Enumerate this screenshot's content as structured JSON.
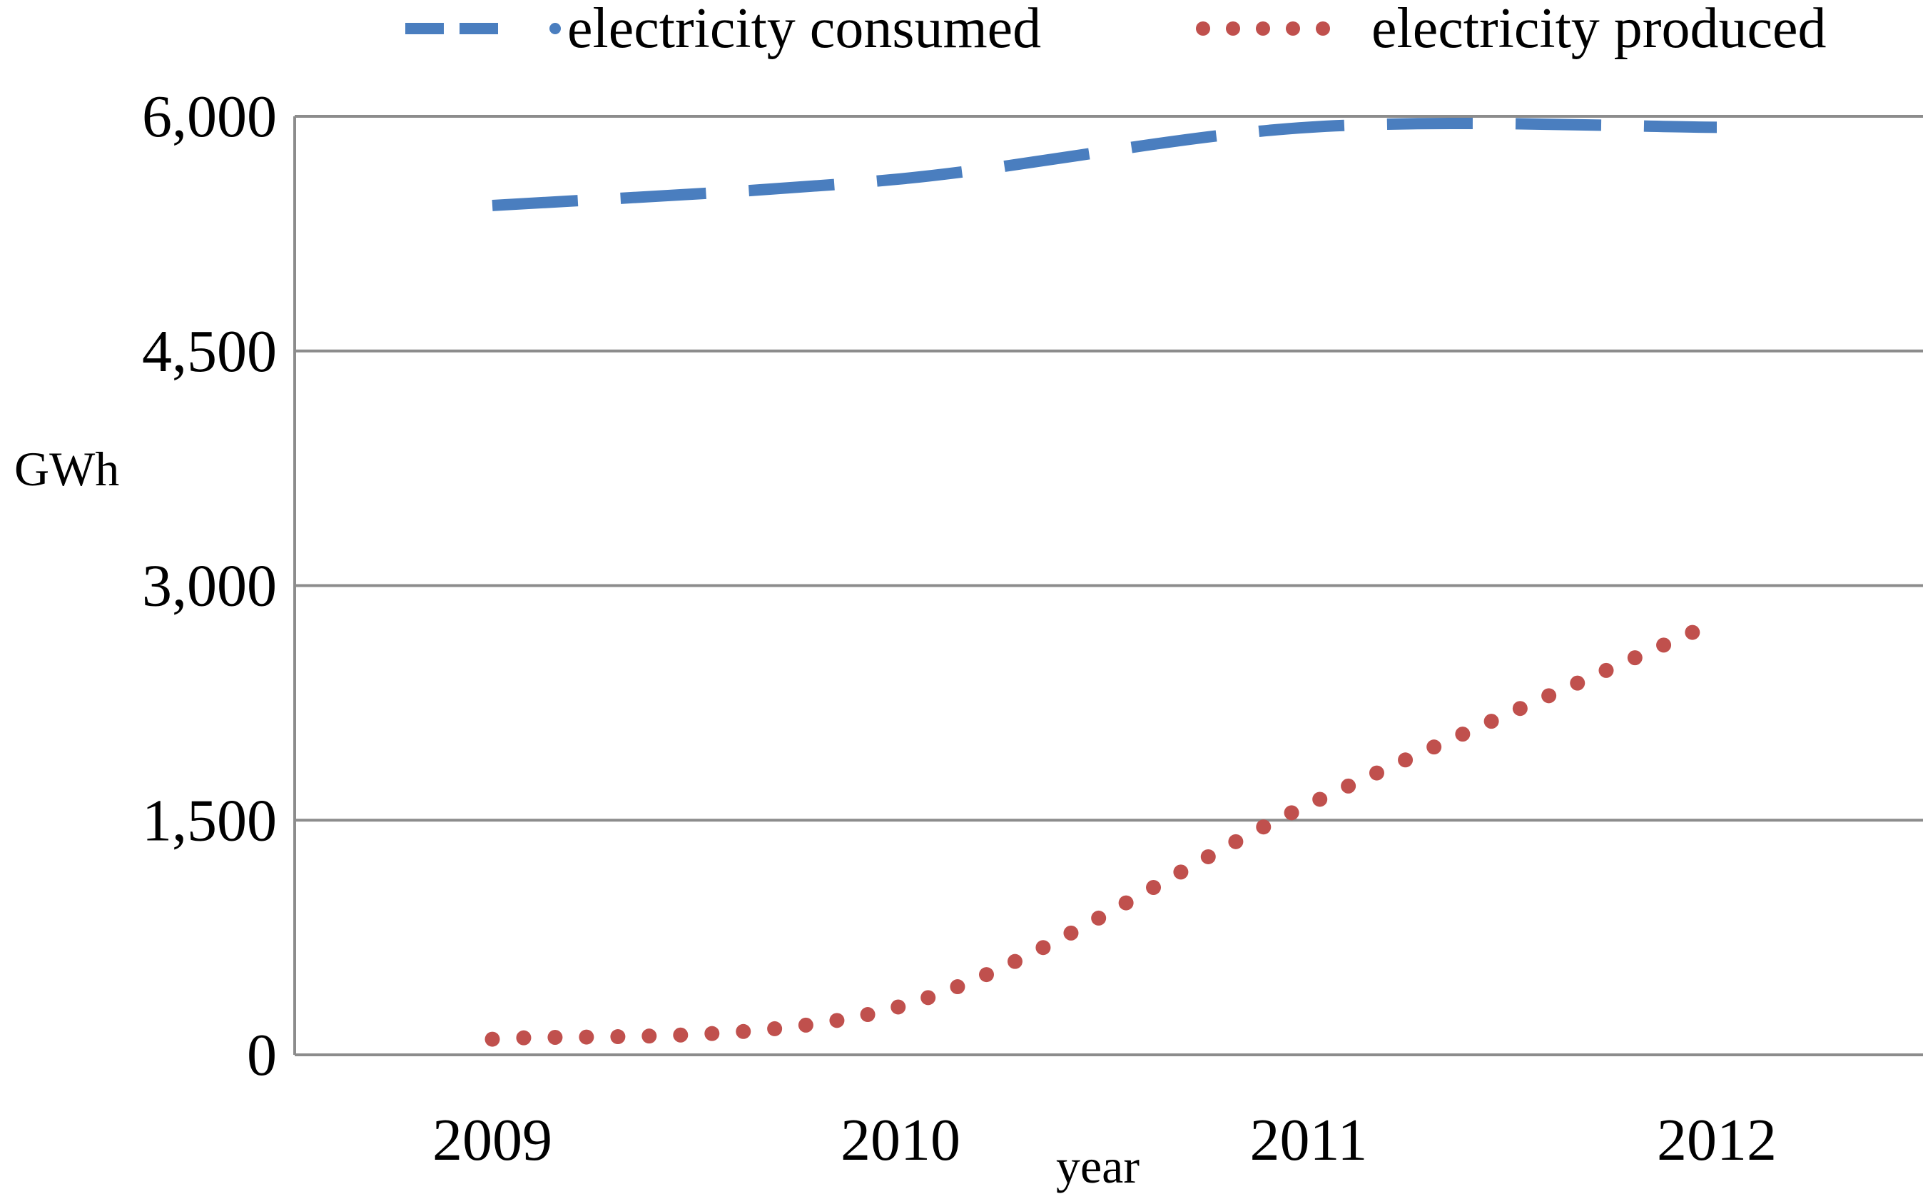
{
  "chart_data": {
    "type": "line",
    "title": "",
    "xlabel": "year",
    "ylabel": "GWh",
    "categories": [
      "2009",
      "2010",
      "2011",
      "2012"
    ],
    "x_ticks": [
      "2009",
      "2010",
      "2011",
      "2012"
    ],
    "ylim": [
      0,
      6000
    ],
    "y_ticks": [
      0,
      1500,
      3000,
      4500,
      6000
    ],
    "y_tick_labels": [
      "0",
      "1,500",
      "3,000",
      "4,500",
      "6,000"
    ],
    "grid": true,
    "legend_position": "top",
    "series": [
      {
        "name": "electricity consumed",
        "style": "dashed",
        "color": "#4a7ebf",
        "points": [
          [
            2009,
            5430
          ],
          [
            2010,
            5600
          ],
          [
            2011,
            5930
          ],
          [
            2012,
            5930
          ]
        ]
      },
      {
        "name": "electricity produced",
        "style": "dotted",
        "color": "#c0504d",
        "points": [
          [
            2009,
            100
          ],
          [
            2010,
            310
          ],
          [
            2011,
            1600
          ],
          [
            2012,
            2770
          ]
        ]
      }
    ]
  }
}
